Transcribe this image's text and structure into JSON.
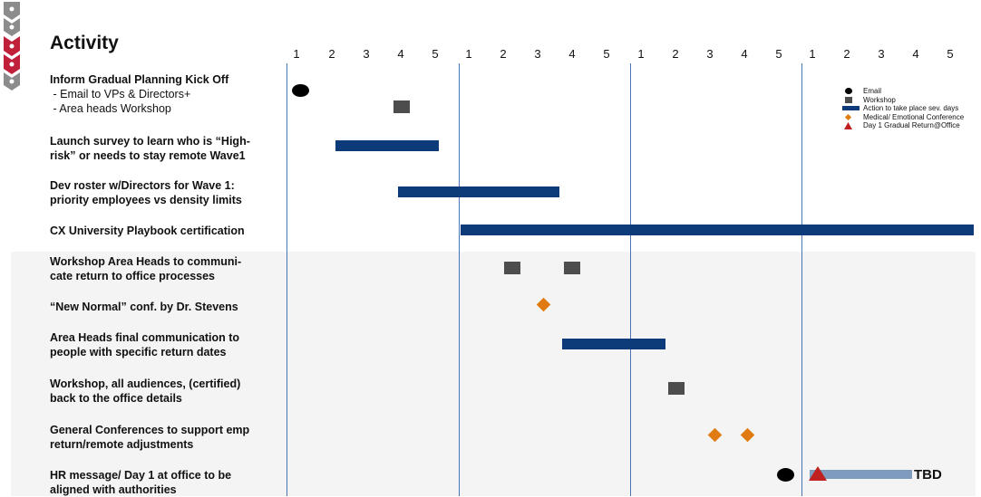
{
  "header": {
    "title": "Activity"
  },
  "timeline": {
    "day_labels": [
      "1",
      "2",
      "3",
      "4",
      "5",
      "1",
      "2",
      "3",
      "4",
      "5",
      "1",
      "2",
      "3",
      "4",
      "5",
      "1",
      "2",
      "3",
      "4",
      "5"
    ]
  },
  "rows": [
    {
      "line1": "Inform Gradual Planning Kick Off",
      "sub1": " - Email to VPs & Directors+",
      "sub2": " - Area heads Workshop"
    },
    {
      "line1": "Launch survey to learn who is “High-",
      "line2": "risk” or needs to stay remote Wave1"
    },
    {
      "line1": "Dev roster w/Directors  for Wave 1:",
      "line2": "priority employees vs density limits"
    },
    {
      "line1": "CX University Playbook certification"
    },
    {
      "line1": "Workshop Area Heads to communi-",
      "line2": "cate return to office processes"
    },
    {
      "line1": "“New Normal” conf. by Dr. Stevens"
    },
    {
      "line1": "Area Heads final communication to",
      "line2": "people with specific return dates"
    },
    {
      "line1": "Workshop, all audiences, (certified)",
      "line2": "back to the office details"
    },
    {
      "line1": "General Conferences to support emp",
      "line2": "return/remote adjustments"
    },
    {
      "line1": "HR message/ Day 1 at office to be",
      "line2": "aligned with authorities"
    }
  ],
  "legend": {
    "email": "Email",
    "workshop": "Workshop",
    "action": "Action to take place sev. days",
    "conference": "Medical/ Emotional Conference",
    "day1": "Day 1 Gradual Return@Office"
  },
  "tbd_label": "TBD",
  "colors": {
    "bar": "#0d3a78",
    "workshop": "#4d4d4d",
    "conference": "#e07b11",
    "day1": "#c0201f",
    "tbd_bar": "#7f9bbd",
    "week_line": "#4a74b8",
    "nav_active": "#c0203a",
    "nav_default": "#8c8c8c"
  }
}
